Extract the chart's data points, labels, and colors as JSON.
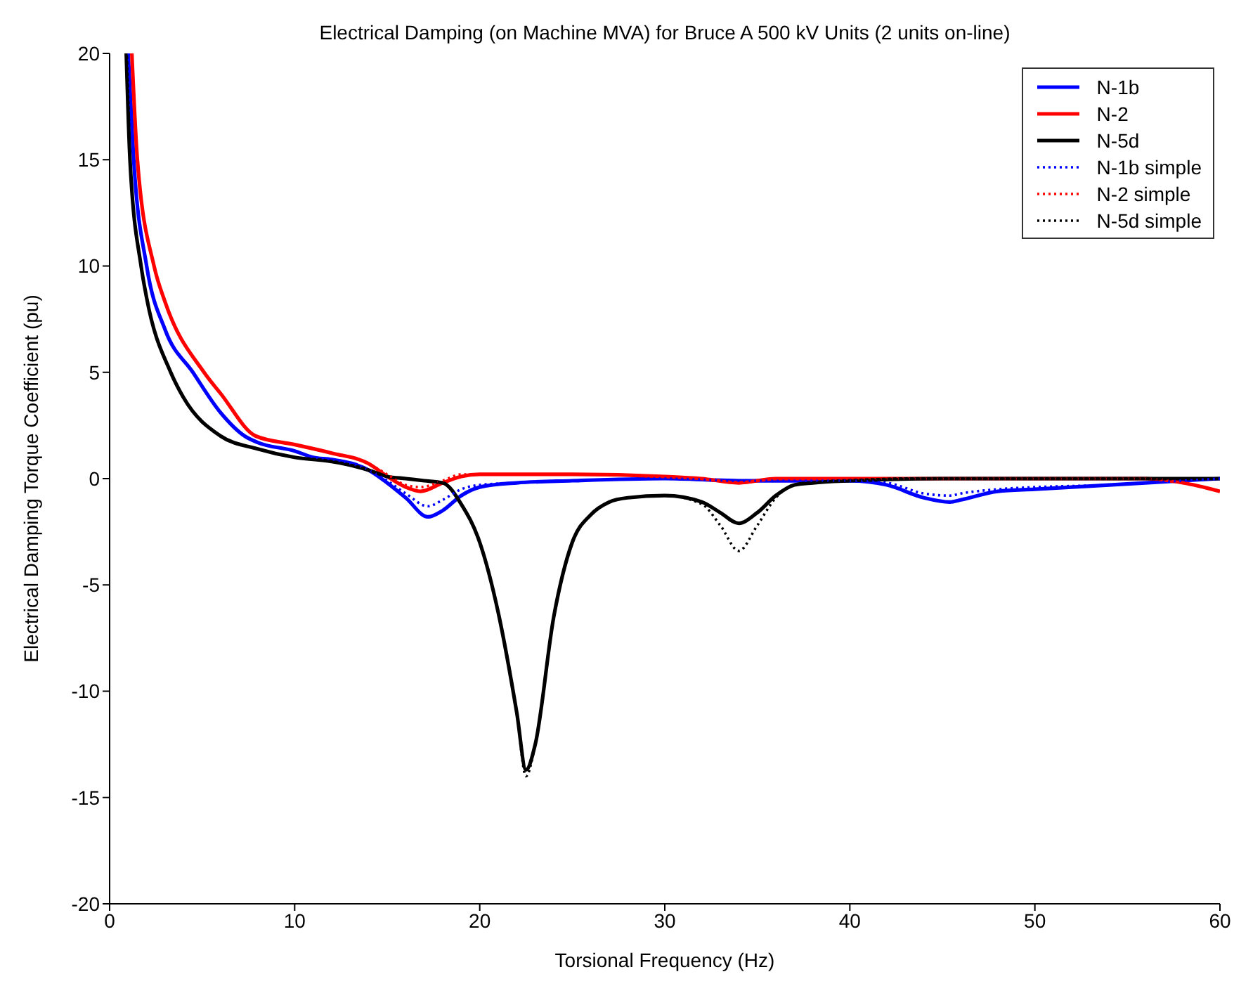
{
  "chart_data": {
    "type": "line",
    "title": "Electrical Damping (on Machine MVA) for Bruce A 500 kV Units (2 units on-line)",
    "xlabel": "Torsional Frequency (Hz)",
    "ylabel": "Electrical Damping Torque Coefficient (pu)",
    "xlim": [
      0,
      60
    ],
    "ylim": [
      -20,
      20
    ],
    "xticks": [
      0,
      10,
      20,
      30,
      40,
      50,
      60
    ],
    "yticks": [
      -20,
      -15,
      -10,
      -5,
      0,
      5,
      10,
      15,
      20
    ],
    "grid": false,
    "legend": "top right",
    "marker": "none",
    "series": [
      {
        "name": "N-1b",
        "color": "#0000ff",
        "line_style": "solid",
        "x": [
          1.0,
          1.3,
          2.0,
          3,
          4.5,
          6,
          7.3,
          8,
          10,
          11,
          12,
          14,
          15,
          16,
          17.2,
          18,
          19,
          20,
          22,
          25,
          30,
          34,
          40,
          42,
          44,
          45.4,
          46,
          48,
          50,
          54,
          58,
          60
        ],
        "values": [
          20,
          15,
          10,
          7,
          5,
          3.1,
          2,
          1.7,
          1.3,
          1.0,
          0.9,
          0.4,
          -0.2,
          -0.9,
          -1.8,
          -1.5,
          -0.8,
          -0.4,
          -0.2,
          -0.1,
          0,
          -0.1,
          -0.1,
          -0.3,
          -0.9,
          -1.1,
          -1.0,
          -0.6,
          -0.5,
          -0.3,
          -0.1,
          0
        ]
      },
      {
        "name": "N-2",
        "color": "#ff0000",
        "line_style": "solid",
        "x": [
          1.2,
          1.5,
          2.4,
          3,
          5.1,
          6,
          7.9,
          10,
          12,
          14,
          15,
          16,
          16.8,
          18,
          19,
          20,
          25,
          30,
          32,
          34,
          36,
          40,
          50,
          56,
          58,
          60
        ],
        "values": [
          20,
          15,
          10,
          8.3,
          5,
          4.0,
          2,
          1.6,
          1.2,
          0.7,
          0.1,
          -0.4,
          -0.6,
          -0.2,
          0.1,
          0.2,
          0.2,
          0.1,
          0,
          -0.2,
          0,
          0,
          0,
          0,
          -0.2,
          -0.6
        ]
      },
      {
        "name": "N-5d",
        "color": "#000000",
        "line_style": "solid",
        "x": [
          0.9,
          1.1,
          1.7,
          2,
          3.3,
          4,
          6,
          8,
          10,
          12,
          14,
          15,
          16,
          17,
          18,
          19,
          20,
          21,
          22,
          22.5,
          23,
          24,
          25,
          26,
          27,
          28,
          30,
          32,
          33,
          34,
          35,
          36,
          37,
          38,
          40,
          45,
          60
        ],
        "values": [
          20,
          15,
          10,
          8.5,
          5,
          3.8,
          2,
          1.4,
          1.0,
          0.8,
          0.4,
          0.1,
          0,
          -0.1,
          -0.2,
          -1.2,
          -3,
          -6.3,
          -11,
          -13.7,
          -12.5,
          -6.5,
          -3,
          -1.7,
          -1.1,
          -0.9,
          -0.8,
          -1.1,
          -1.6,
          -2.1,
          -1.6,
          -0.8,
          -0.3,
          -0.2,
          -0.1,
          0,
          0
        ]
      },
      {
        "name": "N-1b simple",
        "color": "#0000ff",
        "line_style": "dotted",
        "x": [
          1.0,
          1.3,
          2.0,
          3,
          4.5,
          6,
          7.3,
          8,
          10,
          11,
          12,
          14,
          15,
          16,
          17.2,
          18,
          19,
          20,
          22,
          25,
          30,
          34,
          40,
          42,
          44,
          45.4,
          46,
          48,
          50,
          54,
          58,
          60
        ],
        "values": [
          20,
          15,
          10,
          7,
          5,
          3.1,
          2,
          1.7,
          1.3,
          1.0,
          0.9,
          0.4,
          -0.1,
          -0.7,
          -1.3,
          -1.0,
          -0.5,
          -0.3,
          -0.2,
          -0.1,
          0,
          -0.1,
          -0.1,
          -0.2,
          -0.7,
          -0.8,
          -0.7,
          -0.5,
          -0.4,
          -0.3,
          -0.1,
          0
        ]
      },
      {
        "name": "N-2 simple",
        "color": "#ff0000",
        "line_style": "dotted",
        "x": [
          1.2,
          1.5,
          2.4,
          3,
          5.1,
          6,
          7.9,
          10,
          12,
          14,
          15,
          16,
          16.8,
          18,
          19,
          20,
          25,
          30,
          32,
          34,
          36,
          40,
          50,
          56,
          58,
          60
        ],
        "values": [
          20,
          15,
          10,
          8.3,
          5,
          4.0,
          2,
          1.6,
          1.2,
          0.7,
          0.2,
          -0.3,
          -0.4,
          -0.1,
          0.2,
          0.2,
          0.2,
          0.1,
          0,
          -0.2,
          0,
          0,
          0,
          0,
          -0.2,
          -0.6
        ]
      },
      {
        "name": "N-5d simple",
        "color": "#000000",
        "line_style": "dotted",
        "x": [
          0.9,
          1.1,
          1.7,
          2,
          3.3,
          4,
          6,
          8,
          10,
          12,
          14,
          15,
          16,
          17,
          18,
          19,
          20,
          21,
          22,
          22.5,
          23,
          24,
          25,
          26,
          27,
          28,
          30,
          32,
          33,
          34,
          35,
          36,
          37,
          38,
          40,
          45,
          60
        ],
        "values": [
          20,
          15,
          10,
          8.5,
          5,
          3.8,
          2,
          1.4,
          1.0,
          0.8,
          0.4,
          0.1,
          0,
          -0.1,
          -0.2,
          -1.2,
          -3,
          -6.3,
          -11,
          -14,
          -12.5,
          -6.5,
          -3,
          -1.7,
          -1.1,
          -0.9,
          -0.8,
          -1.2,
          -2.2,
          -3.4,
          -2.2,
          -0.9,
          -0.3,
          -0.2,
          -0.1,
          0,
          0
        ]
      }
    ]
  }
}
